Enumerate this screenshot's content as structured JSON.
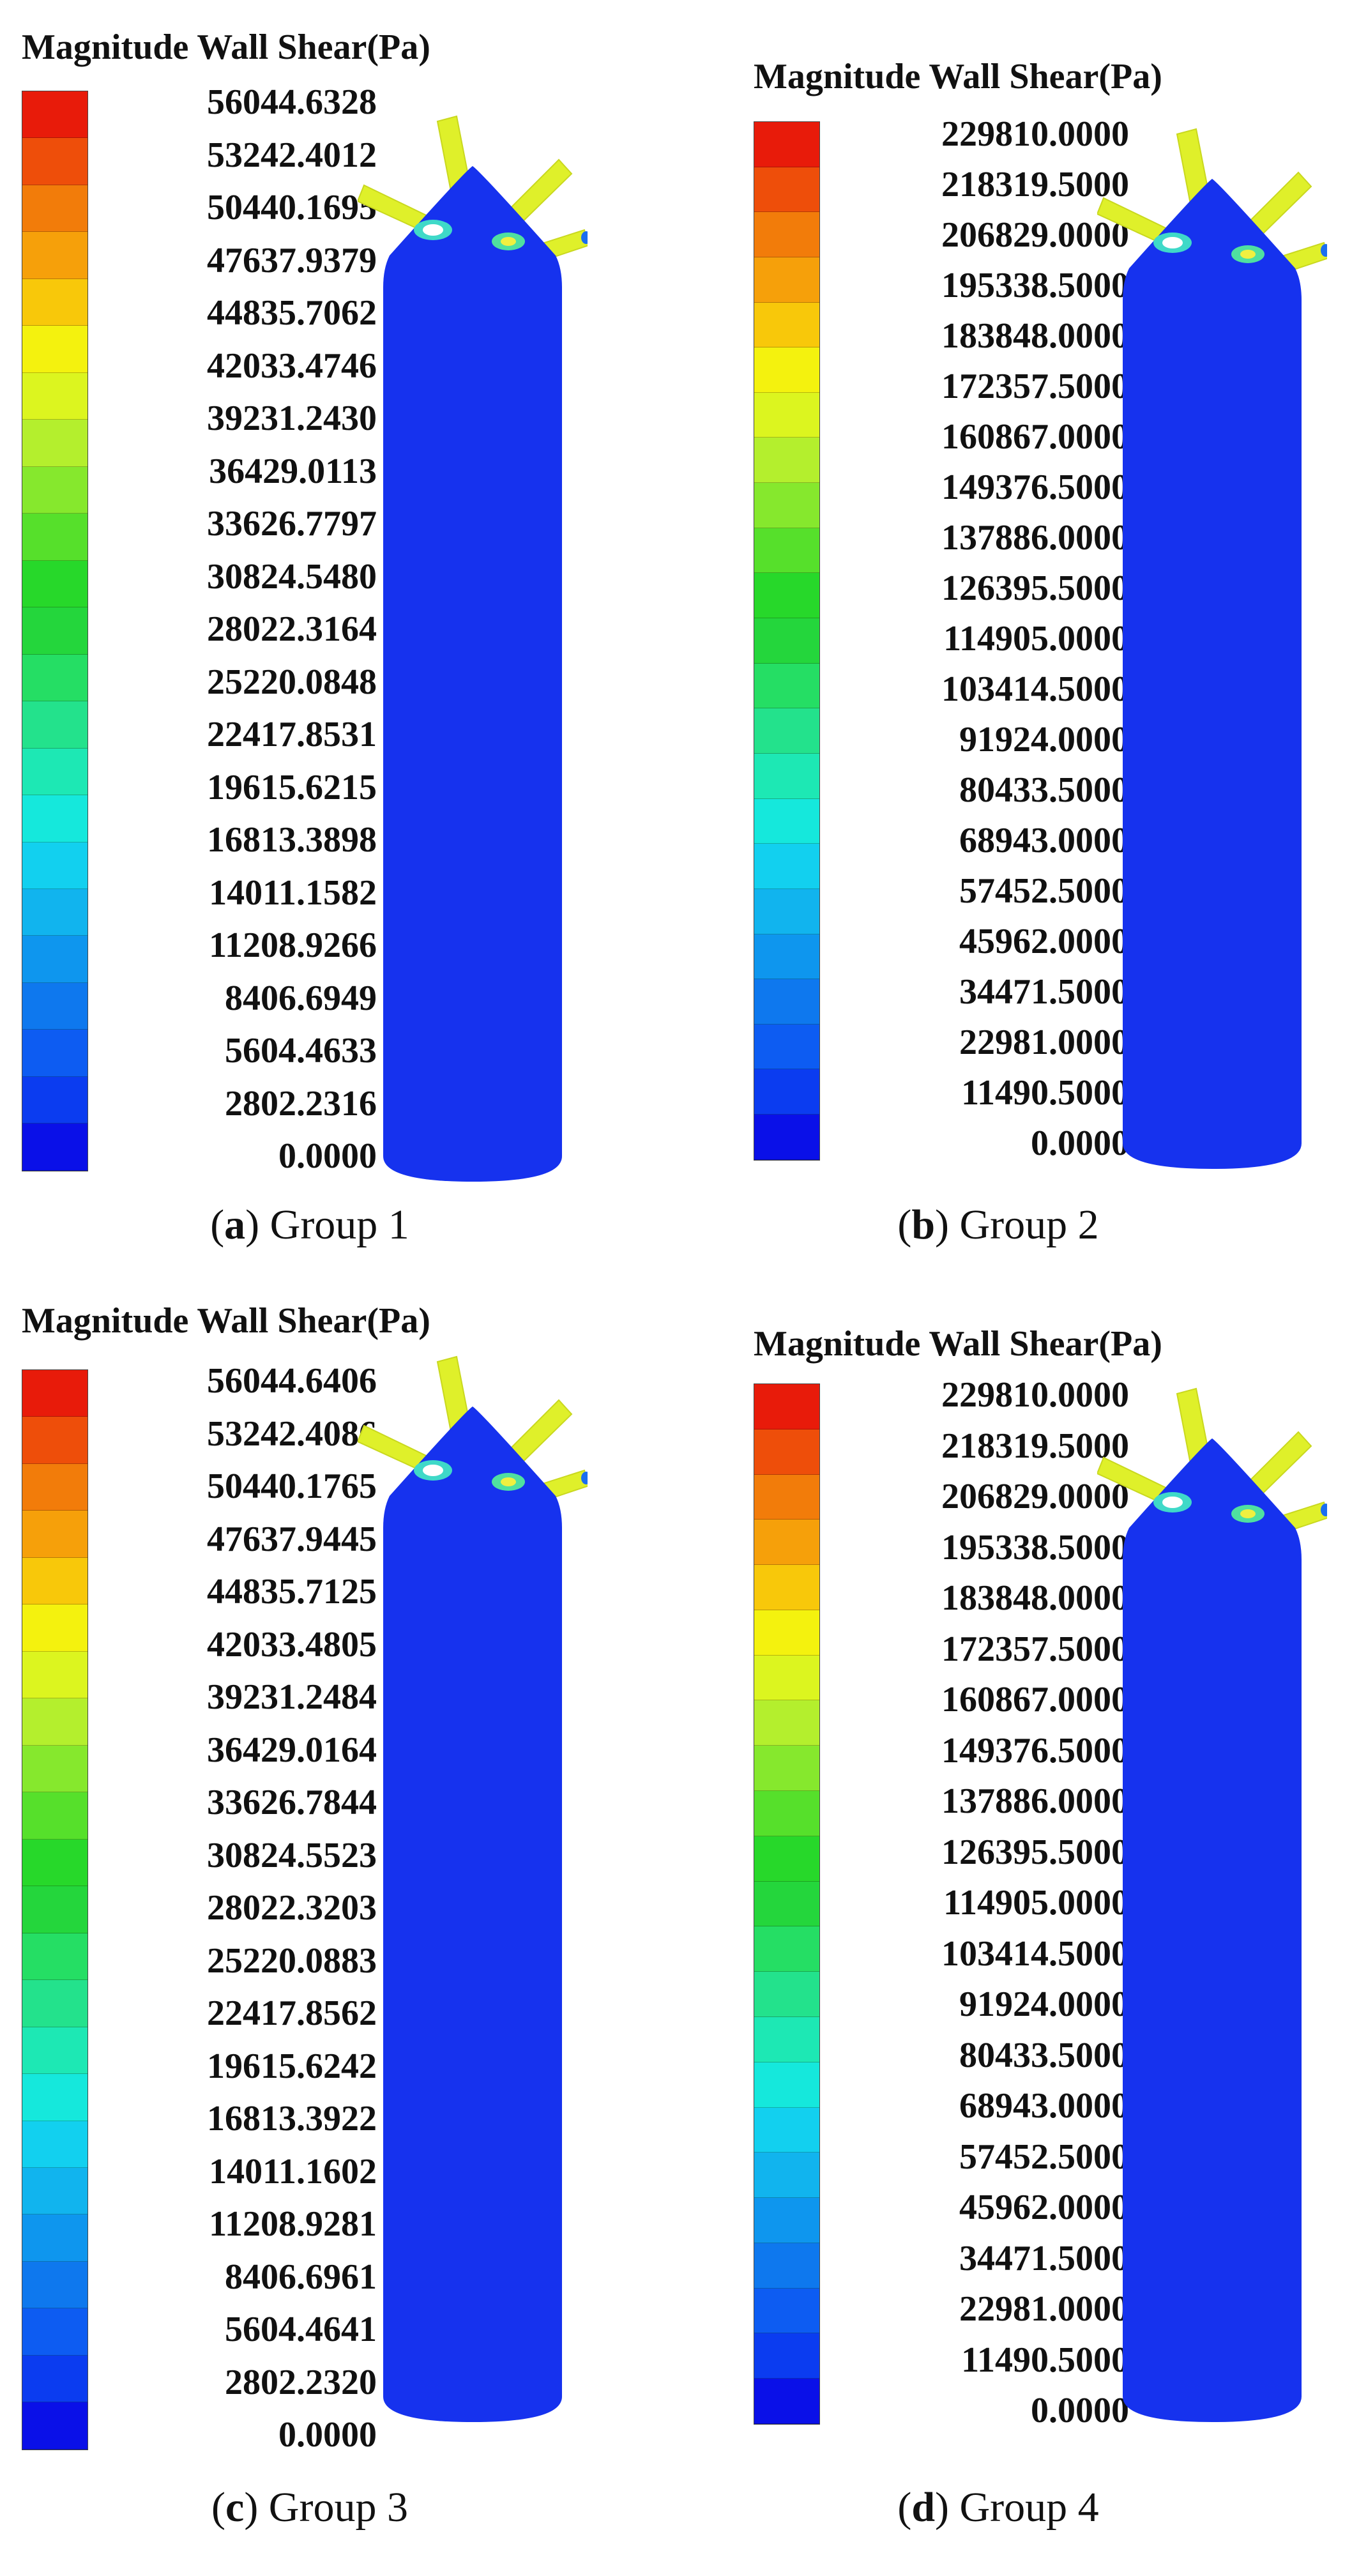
{
  "legend_colors": [
    "#0a10e8",
    "#0b3cf0",
    "#0d5cf2",
    "#0e78ee",
    "#0e96ee",
    "#11b4ee",
    "#12d0ef",
    "#15e8dc",
    "#1de8b4",
    "#23e28c",
    "#25de64",
    "#24d63c",
    "#27d82a",
    "#56e02b",
    "#86e82d",
    "#b4ef2d",
    "#dcf51f",
    "#f4f20e",
    "#f8c80a",
    "#f6a00a",
    "#f27c0a",
    "#ee4e0a",
    "#e81b0a"
  ],
  "panels": [
    {
      "title": "Magnitude Wall Shear(Pa)",
      "caption_letter": "a",
      "caption_text": ") Group 1",
      "ticks": [
        "56044.6328",
        "53242.4012",
        "50440.1695",
        "47637.9379",
        "44835.7062",
        "42033.4746",
        "39231.2430",
        "36429.0113",
        "33626.7797",
        "30824.5480",
        "28022.3164",
        "25220.0848",
        "22417.8531",
        "19615.6215",
        "16813.3898",
        "14011.1582",
        "11208.9266",
        "8406.6949",
        "5604.4633",
        "2802.2316",
        "0.0000"
      ]
    },
    {
      "title": "Magnitude Wall Shear(Pa)",
      "caption_letter": "b",
      "caption_text": ") Group 2",
      "ticks": [
        "229810.0000",
        "218319.5000",
        "206829.0000",
        "195338.5000",
        "183848.0000",
        "172357.5000",
        "160867.0000",
        "149376.5000",
        "137886.0000",
        "126395.5000",
        "114905.0000",
        "103414.5000",
        "91924.0000",
        "80433.5000",
        "68943.0000",
        "57452.5000",
        "45962.0000",
        "34471.5000",
        "22981.0000",
        "11490.5000",
        "0.0000"
      ]
    },
    {
      "title": "Magnitude Wall Shear(Pa)",
      "caption_letter": "c",
      "caption_text": ") Group 3",
      "ticks": [
        "56044.6406",
        "53242.4086",
        "50440.1765",
        "47637.9445",
        "44835.7125",
        "42033.4805",
        "39231.2484",
        "36429.0164",
        "33626.7844",
        "30824.5523",
        "28022.3203",
        "25220.0883",
        "22417.8562",
        "19615.6242",
        "16813.3922",
        "14011.1602",
        "11208.9281",
        "8406.6961",
        "5604.4641",
        "2802.2320",
        "0.0000"
      ]
    },
    {
      "title": "Magnitude Wall Shear(Pa)",
      "caption_letter": "d",
      "caption_text": ") Group 4",
      "ticks": [
        "229810.0000",
        "218319.5000",
        "206829.0000",
        "195338.5000",
        "183848.0000",
        "172357.5000",
        "160867.0000",
        "149376.5000",
        "137886.0000",
        "126395.5000",
        "114905.0000",
        "103414.5000",
        "91924.0000",
        "80433.5000",
        "68943.0000",
        "57452.5000",
        "45962.0000",
        "34471.5000",
        "22981.0000",
        "11490.5000",
        "0.0000"
      ]
    }
  ]
}
